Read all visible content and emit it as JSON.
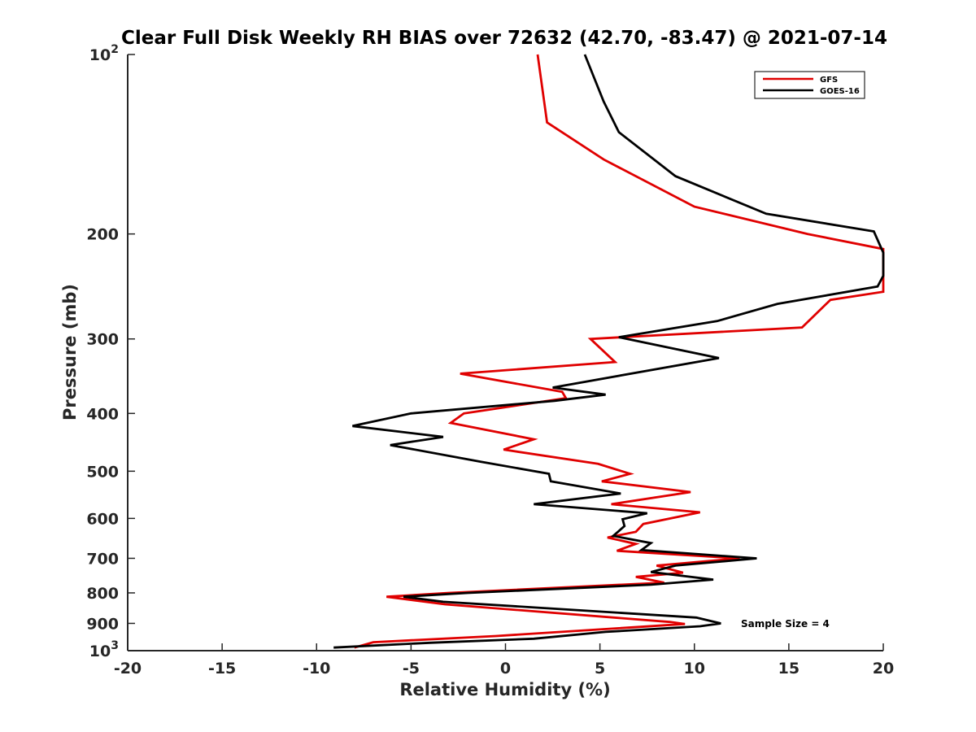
{
  "chart_data": {
    "type": "line",
    "title": "Clear Full Disk Weekly RH BIAS over 72632 (42.70, -83.47) @ 2021-07-14",
    "xlabel": "Relative Humidity (%)",
    "ylabel": "Pressure (mb)",
    "xlim": [
      -20,
      20
    ],
    "ylim": [
      100,
      1000
    ],
    "yscale": "log",
    "y_reversed": true,
    "grid": false,
    "legend_position": "top-right",
    "x_ticks": [
      "-20",
      "-15",
      "-10",
      "-5",
      "0",
      "5",
      "10",
      "15",
      "20"
    ],
    "y_ticks": [
      {
        "base": "10",
        "exp": "2",
        "value": 100
      },
      {
        "label": "200",
        "value": 200
      },
      {
        "label": "300",
        "value": 300
      },
      {
        "label": "400",
        "value": 400
      },
      {
        "label": "500",
        "value": 500
      },
      {
        "label": "600",
        "value": 600
      },
      {
        "label": "700",
        "value": 700
      },
      {
        "label": "800",
        "value": 800
      },
      {
        "label": "900",
        "value": 900
      },
      {
        "base": "10",
        "exp": "3",
        "value": 1000
      }
    ],
    "annotation": "Sample Size = 4",
    "series": [
      {
        "name": "GFS",
        "color": "#e00000",
        "points": [
          [
            1.7,
            100
          ],
          [
            2.2,
            130
          ],
          [
            5.2,
            150
          ],
          [
            10.0,
            180
          ],
          [
            16.0,
            200
          ],
          [
            20.0,
            212
          ],
          [
            20.0,
            250
          ],
          [
            17.2,
            258
          ],
          [
            15.7,
            287
          ],
          [
            4.5,
            300
          ],
          [
            5.8,
            328
          ],
          [
            -2.4,
            343
          ],
          [
            3.0,
            368
          ],
          [
            3.2,
            377
          ],
          [
            -2.2,
            400
          ],
          [
            -2.9,
            415
          ],
          [
            1.5,
            442
          ],
          [
            -0.1,
            460
          ],
          [
            4.9,
            486
          ],
          [
            6.6,
            505
          ],
          [
            5.1,
            520
          ],
          [
            9.8,
            542
          ],
          [
            5.6,
            568
          ],
          [
            10.3,
            586
          ],
          [
            7.3,
            613
          ],
          [
            6.9,
            632
          ],
          [
            5.4,
            646
          ],
          [
            6.9,
            662
          ],
          [
            5.9,
            680
          ],
          [
            12.4,
            700
          ],
          [
            8.0,
            720
          ],
          [
            9.4,
            740
          ],
          [
            6.9,
            752
          ],
          [
            8.4,
            769
          ],
          [
            -3.0,
            800
          ],
          [
            -6.3,
            812
          ],
          [
            -3.2,
            836
          ],
          [
            8.7,
            895
          ],
          [
            9.5,
            902
          ],
          [
            -0.5,
            945
          ],
          [
            -7.0,
            968
          ],
          [
            -8.0,
            988
          ]
        ]
      },
      {
        "name": "GOES-16",
        "color": "#000000",
        "points": [
          [
            4.2,
            100
          ],
          [
            5.2,
            120
          ],
          [
            6.0,
            135
          ],
          [
            9.0,
            160
          ],
          [
            13.8,
            185
          ],
          [
            19.5,
            198
          ],
          [
            20.0,
            215
          ],
          [
            20.0,
            235
          ],
          [
            19.7,
            245
          ],
          [
            14.4,
            262
          ],
          [
            11.2,
            280
          ],
          [
            6.0,
            298
          ],
          [
            11.3,
            323
          ],
          [
            2.5,
            362
          ],
          [
            5.3,
            372
          ],
          [
            2.6,
            381
          ],
          [
            -5.0,
            400
          ],
          [
            -8.1,
            420
          ],
          [
            -3.3,
            438
          ],
          [
            -6.1,
            452
          ],
          [
            -1.3,
            482
          ],
          [
            2.3,
            505
          ],
          [
            2.4,
            520
          ],
          [
            6.1,
            545
          ],
          [
            1.5,
            568
          ],
          [
            7.5,
            588
          ],
          [
            6.2,
            602
          ],
          [
            6.3,
            618
          ],
          [
            6.0,
            630
          ],
          [
            5.7,
            642
          ],
          [
            7.7,
            660
          ],
          [
            7.2,
            678
          ],
          [
            13.3,
            700
          ],
          [
            9.0,
            720
          ],
          [
            7.7,
            738
          ],
          [
            11.0,
            760
          ],
          [
            7.7,
            775
          ],
          [
            -2.0,
            800
          ],
          [
            -5.4,
            812
          ],
          [
            -3.3,
            828
          ],
          [
            10.1,
            880
          ],
          [
            11.4,
            900
          ],
          [
            10.3,
            910
          ],
          [
            5.3,
            930
          ],
          [
            1.5,
            955
          ],
          [
            -4.0,
            970
          ],
          [
            -9.1,
            988
          ]
        ]
      }
    ]
  }
}
